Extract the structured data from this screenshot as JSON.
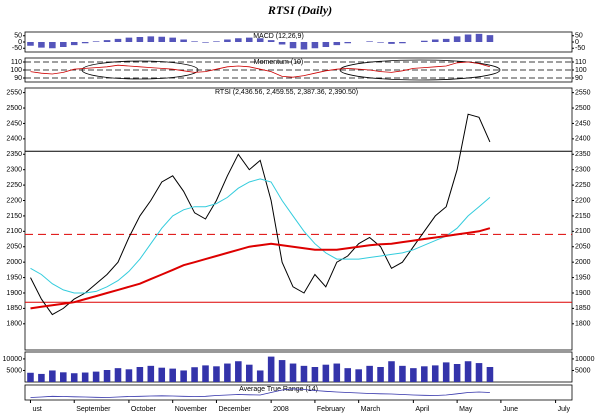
{
  "chart_data": [
    {
      "type": "line",
      "title": "RTSI (Daily)",
      "label": "RTSI (2,436.56, 2,459.55, 2,387.36, 2,390.50)",
      "categories": [
        "ust",
        null,
        null,
        null,
        "September",
        null,
        null,
        null,
        null,
        "October",
        null,
        null,
        null,
        "November",
        null,
        null,
        null,
        "December",
        null,
        null,
        null,
        null,
        "2008",
        null,
        null,
        null,
        "February",
        null,
        null,
        null,
        "March",
        null,
        null,
        null,
        null,
        "April",
        null,
        null,
        null,
        "May",
        null,
        null,
        null,
        "June",
        null,
        null,
        null,
        null,
        "July",
        null
      ],
      "series": [
        {
          "color": "#000000",
          "values": [
            1950,
            1880,
            1830,
            1850,
            1880,
            1900,
            1930,
            1960,
            2000,
            2080,
            2150,
            2200,
            2260,
            2280,
            2230,
            2160,
            2140,
            2200,
            2280,
            2350,
            2300,
            2330,
            2200,
            2000,
            1920,
            1900,
            1960,
            1920,
            2000,
            2020,
            2060,
            2080,
            2050,
            1980,
            2000,
            2050,
            2100,
            2150,
            2180,
            2300,
            2480,
            2470,
            2390,
            null,
            null,
            null,
            null,
            null,
            null,
            null
          ]
        },
        {
          "color": "#33ccdd",
          "values": [
            1980,
            1960,
            1930,
            1910,
            1900,
            1900,
            1905,
            1920,
            1940,
            1970,
            2010,
            2060,
            2110,
            2150,
            2170,
            2180,
            2180,
            2190,
            2210,
            2240,
            2260,
            2270,
            2260,
            2200,
            2150,
            2100,
            2060,
            2030,
            2010,
            2010,
            2010,
            2015,
            2020,
            2025,
            2030,
            2040,
            2055,
            2070,
            2085,
            2110,
            2150,
            2180,
            2210,
            null,
            null,
            null,
            null,
            null,
            null,
            null
          ]
        },
        {
          "color": "#dd0000",
          "values": [
            1850,
            1855,
            1860,
            1865,
            1870,
            1880,
            1890,
            1900,
            1910,
            1920,
            1930,
            1945,
            1960,
            1975,
            1990,
            2000,
            2010,
            2020,
            2030,
            2040,
            2050,
            2055,
            2060,
            2055,
            2050,
            2045,
            2040,
            2040,
            2040,
            2045,
            2050,
            2055,
            2058,
            2060,
            2065,
            2070,
            2075,
            2080,
            2085,
            2090,
            2095,
            2100,
            2110,
            null,
            null,
            null,
            null,
            null,
            null,
            null
          ]
        }
      ],
      "levels": [
        {
          "value": 2360,
          "color": "#000000"
        },
        {
          "value": 2090,
          "color": "#dd0000",
          "dashed": true
        },
        {
          "value": 1870,
          "color": "#dd0000"
        }
      ],
      "ylim": [
        1715,
        2565
      ],
      "yticks": [
        2550,
        2500,
        2450,
        2400,
        2350,
        2300,
        2250,
        2200,
        2150,
        2100,
        2050,
        2000,
        1950,
        1900,
        1850,
        1800
      ]
    },
    {
      "type": "bar",
      "label": "MACD (12,26,9)",
      "color": "#5555bb",
      "values": [
        -30,
        -45,
        -50,
        -40,
        -25,
        -10,
        5,
        15,
        25,
        35,
        40,
        45,
        42,
        35,
        20,
        5,
        -5,
        5,
        20,
        30,
        35,
        30,
        15,
        -20,
        -50,
        -60,
        -50,
        -40,
        -25,
        -10,
        0,
        5,
        -5,
        -15,
        -10,
        0,
        10,
        20,
        25,
        45,
        60,
        65,
        55,
        null,
        null,
        null,
        null,
        null,
        null,
        null
      ],
      "ylim": [
        -80,
        80
      ],
      "yticks": [
        50,
        0,
        -50
      ]
    },
    {
      "type": "line",
      "label": "Momentum (10)",
      "color": "#cc0000",
      "values": [
        98,
        96,
        95,
        97,
        101,
        102,
        103,
        104,
        106,
        105,
        104,
        103,
        102,
        101,
        99,
        97,
        98,
        101,
        104,
        105,
        104,
        101,
        98,
        92,
        91,
        93,
        96,
        99,
        101,
        102,
        101,
        100,
        98,
        97,
        99,
        102,
        103,
        104,
        105,
        109,
        110,
        108,
        104,
        null,
        null,
        null,
        null,
        null,
        null,
        null
      ],
      "ylim": [
        85,
        115
      ],
      "yticks": [
        110,
        100,
        90
      ],
      "grid": true
    },
    {
      "type": "bar",
      "color": "#3333aa",
      "values": [
        4000,
        3500,
        5000,
        4200,
        3800,
        4100,
        4500,
        5200,
        6000,
        5500,
        6500,
        7000,
        6200,
        5800,
        5000,
        6400,
        7200,
        6800,
        8000,
        9000,
        7500,
        5000,
        11000,
        9500,
        8000,
        7000,
        6500,
        7500,
        8000,
        6000,
        5500,
        7000,
        6500,
        9000,
        7000,
        6000,
        6800,
        7200,
        8500,
        7800,
        9000,
        8200,
        6500,
        null,
        null,
        null,
        null,
        null,
        null,
        null
      ],
      "ylim": [
        0,
        13000
      ],
      "yticks": [
        10000,
        5000
      ]
    },
    {
      "type": "line",
      "label": "Average True Range (14)",
      "color": "#3333aa",
      "values": [
        40,
        42,
        45,
        44,
        43,
        42,
        41,
        40,
        42,
        44,
        45,
        46,
        47,
        46,
        45,
        44,
        45,
        48,
        50,
        52,
        51,
        50,
        60,
        70,
        75,
        72,
        68,
        65,
        62,
        60,
        58,
        56,
        55,
        54,
        52,
        50,
        49,
        48,
        50,
        55,
        60,
        62,
        60,
        null,
        null,
        null,
        null,
        null,
        null,
        null
      ],
      "ylim": [
        30,
        90
      ]
    }
  ]
}
